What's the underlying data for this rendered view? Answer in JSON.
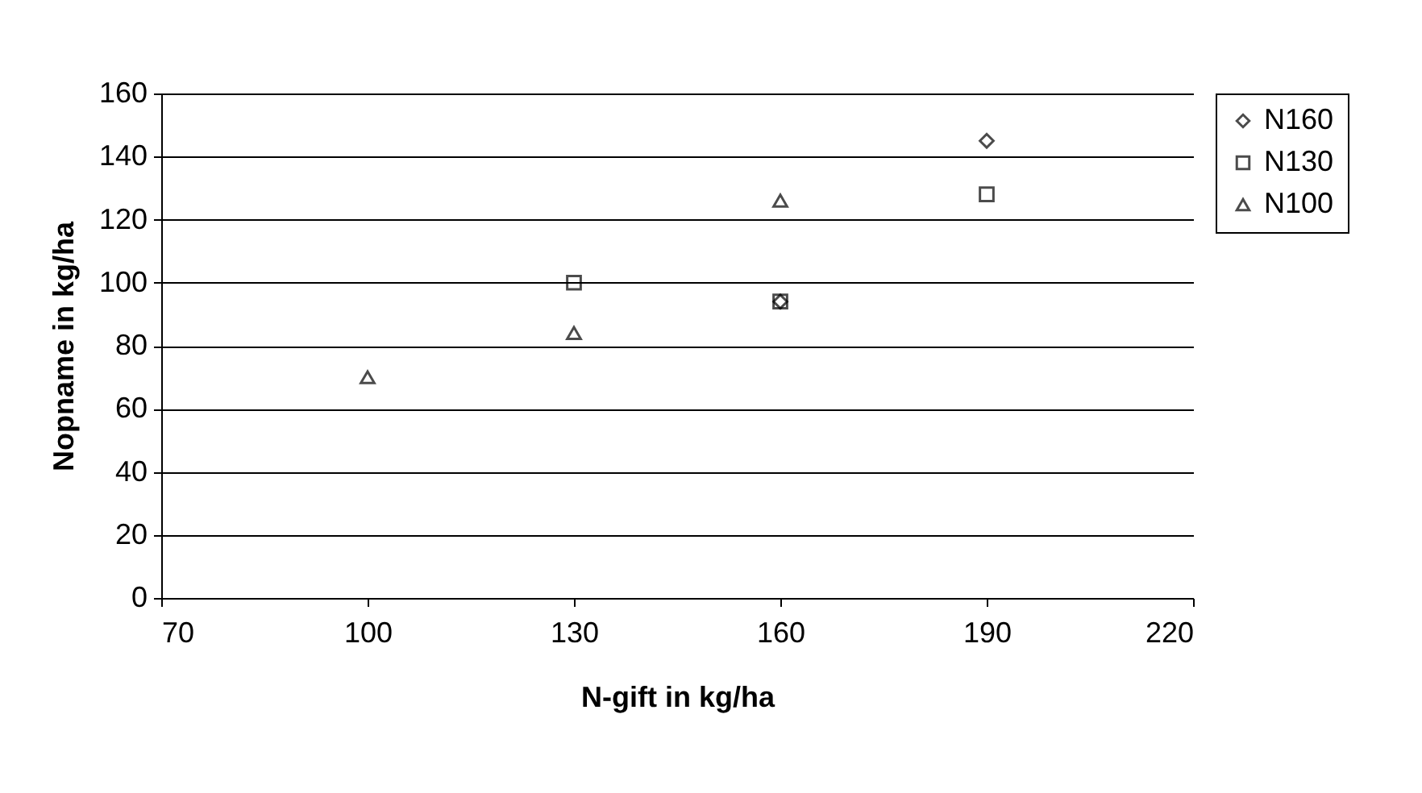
{
  "chart_data": {
    "type": "scatter",
    "xlabel": "N-gift in kg/ha",
    "ylabel": "Nopname in kg/ha",
    "series": [
      {
        "name": "N160",
        "color": "#000000",
        "marker": "diamond",
        "x": [
          160,
          190
        ],
        "values": [
          94,
          145
        ]
      },
      {
        "name": "N130",
        "color": "#000000",
        "marker": "square",
        "x": [
          130,
          160,
          190
        ],
        "values": [
          100,
          94,
          128
        ]
      },
      {
        "name": "N100",
        "color": "#000000",
        "marker": "triangle",
        "x": [
          100,
          130,
          160
        ],
        "values": [
          70,
          84,
          126
        ]
      }
    ],
    "xlim": [
      70,
      220
    ],
    "xticks": [
      70,
      100,
      130,
      160,
      190,
      220
    ],
    "ylim": [
      0,
      160
    ],
    "yticks": [
      0,
      20,
      40,
      60,
      80,
      100,
      120,
      140,
      160
    ],
    "grid": "y",
    "legend": "right"
  }
}
